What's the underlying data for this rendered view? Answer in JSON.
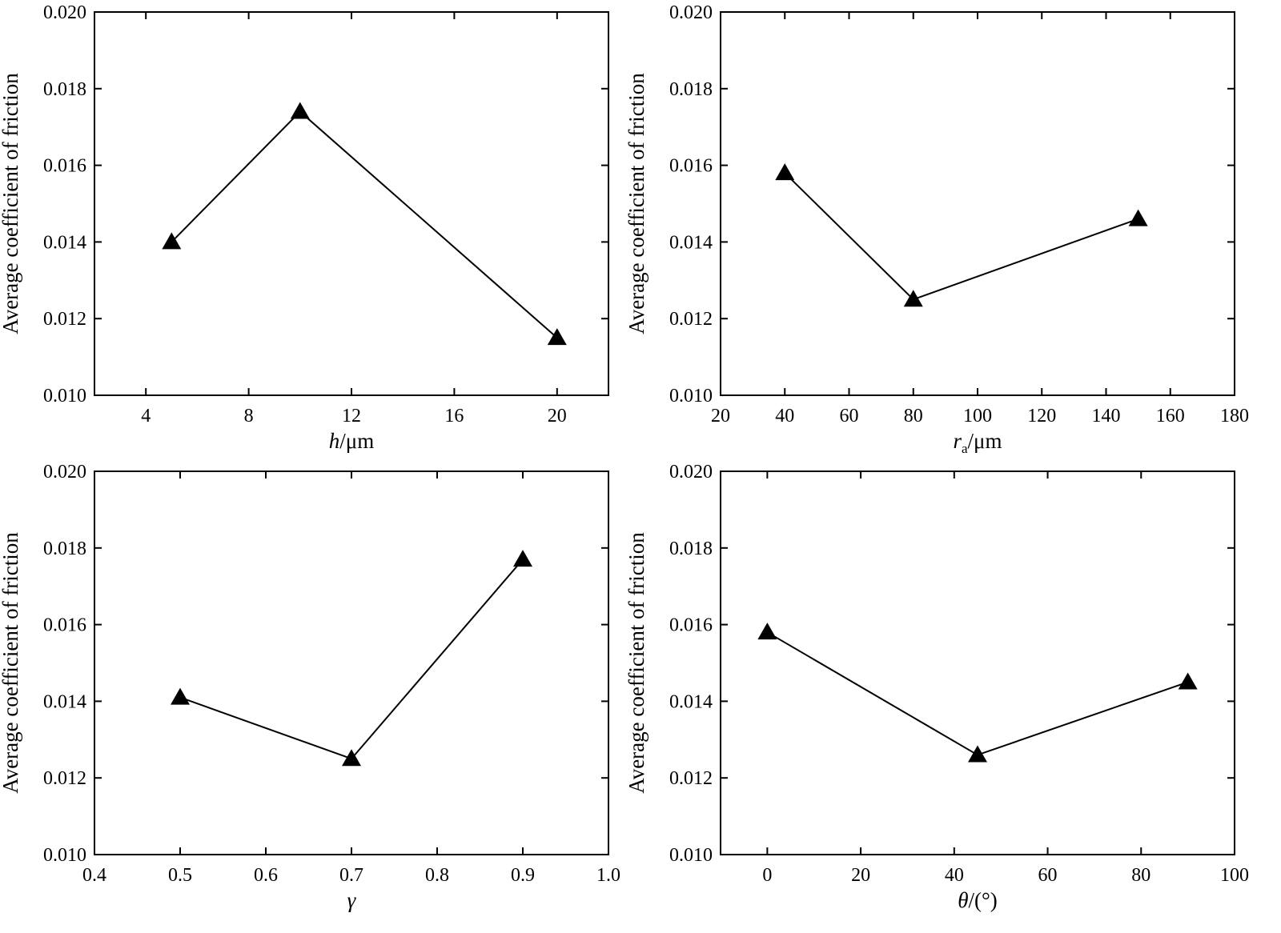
{
  "chart_data": [
    {
      "type": "line",
      "xlabel_var": "h",
      "xlabel_sub": "",
      "xlabel_unit": "/μm",
      "ylabel": "Average coefficient of friction",
      "xlim": [
        2,
        22
      ],
      "ylim": [
        0.01,
        0.02
      ],
      "xticks": [
        4,
        8,
        12,
        16,
        20
      ],
      "xtick_labels": [
        "4",
        "8",
        "12",
        "16",
        "20"
      ],
      "yticks": [
        0.01,
        0.012,
        0.014,
        0.016,
        0.018,
        0.02
      ],
      "ytick_labels": [
        "0.010",
        "0.012",
        "0.014",
        "0.016",
        "0.018",
        "0.020"
      ],
      "grid": false,
      "marker": "triangle",
      "x": [
        5,
        10,
        20
      ],
      "y": [
        0.014,
        0.0174,
        0.0115
      ]
    },
    {
      "type": "line",
      "xlabel_var": "r",
      "xlabel_sub": "a",
      "xlabel_unit": "/μm",
      "ylabel": "Average coefficient of friction",
      "xlim": [
        20,
        180
      ],
      "ylim": [
        0.01,
        0.02
      ],
      "xticks": [
        20,
        40,
        60,
        80,
        100,
        120,
        140,
        160,
        180
      ],
      "xtick_labels": [
        "20",
        "40",
        "60",
        "80",
        "100",
        "120",
        "140",
        "160",
        "180"
      ],
      "yticks": [
        0.01,
        0.012,
        0.014,
        0.016,
        0.018,
        0.02
      ],
      "ytick_labels": [
        "0.010",
        "0.012",
        "0.014",
        "0.016",
        "0.018",
        "0.020"
      ],
      "grid": false,
      "marker": "triangle",
      "x": [
        40,
        80,
        150
      ],
      "y": [
        0.0158,
        0.0125,
        0.0146
      ]
    },
    {
      "type": "line",
      "xlabel_var": "γ",
      "xlabel_sub": "",
      "xlabel_unit": "",
      "ylabel": "Average coefficient of friction",
      "xlim": [
        0.4,
        1.0
      ],
      "ylim": [
        0.01,
        0.02
      ],
      "xticks": [
        0.4,
        0.5,
        0.6,
        0.7,
        0.8,
        0.9,
        1.0
      ],
      "xtick_labels": [
        "0.4",
        "0.5",
        "0.6",
        "0.7",
        "0.8",
        "0.9",
        "1.0"
      ],
      "yticks": [
        0.01,
        0.012,
        0.014,
        0.016,
        0.018,
        0.02
      ],
      "ytick_labels": [
        "0.010",
        "0.012",
        "0.014",
        "0.016",
        "0.018",
        "0.020"
      ],
      "grid": false,
      "marker": "triangle",
      "x": [
        0.5,
        0.7,
        0.9
      ],
      "y": [
        0.0141,
        0.0125,
        0.0177
      ]
    },
    {
      "type": "line",
      "xlabel_var": "θ",
      "xlabel_sub": "",
      "xlabel_unit": "/(°)",
      "ylabel": "Average coefficient of friction",
      "xlim": [
        -10,
        100
      ],
      "ylim": [
        0.01,
        0.02
      ],
      "xticks": [
        0,
        20,
        40,
        60,
        80,
        100
      ],
      "xtick_labels": [
        "0",
        "20",
        "40",
        "60",
        "80",
        "100"
      ],
      "yticks": [
        0.01,
        0.012,
        0.014,
        0.016,
        0.018,
        0.02
      ],
      "ytick_labels": [
        "0.010",
        "0.012",
        "0.014",
        "0.016",
        "0.018",
        "0.020"
      ],
      "grid": false,
      "marker": "triangle",
      "x": [
        0,
        45,
        90
      ],
      "y": [
        0.0158,
        0.0126,
        0.0145
      ]
    }
  ]
}
